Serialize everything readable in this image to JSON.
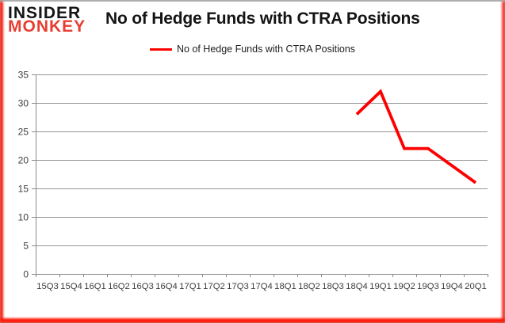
{
  "logo": {
    "line1": "INSIDER",
    "line2": "MONKEY"
  },
  "header": {
    "title": "No of Hedge Funds with CTRA Positions"
  },
  "legend": {
    "label": "No of Hedge Funds with CTRA Positions"
  },
  "colors": {
    "line": "#ff0000",
    "grid": "#969696",
    "axis": "#8a8a8a",
    "tick_label": "#3d3d3d",
    "logo_black": "#151515",
    "logo_red": "#e63e32",
    "frame_gray": "#aeaeae",
    "frame_red": "#ff1a0a",
    "background": "#ffffff"
  },
  "chart_data": {
    "type": "line",
    "title": "No of Hedge Funds with CTRA Positions",
    "xlabel": "",
    "ylabel": "",
    "categories": [
      "15Q3",
      "15Q4",
      "16Q1",
      "16Q2",
      "16Q3",
      "16Q4",
      "17Q1",
      "17Q2",
      "17Q3",
      "17Q4",
      "18Q1",
      "18Q2",
      "18Q3",
      "18Q4",
      "19Q1",
      "19Q2",
      "19Q3",
      "19Q4",
      "20Q1"
    ],
    "series": [
      {
        "name": "No of Hedge Funds with CTRA Positions",
        "color": "#ff0000",
        "values": [
          null,
          null,
          null,
          null,
          null,
          null,
          null,
          null,
          null,
          null,
          null,
          null,
          null,
          28,
          32,
          22,
          22,
          19,
          16
        ]
      }
    ],
    "ylim": [
      0,
      35
    ],
    "ytick_step": 5,
    "grid": true,
    "legend_position": "top-center"
  }
}
